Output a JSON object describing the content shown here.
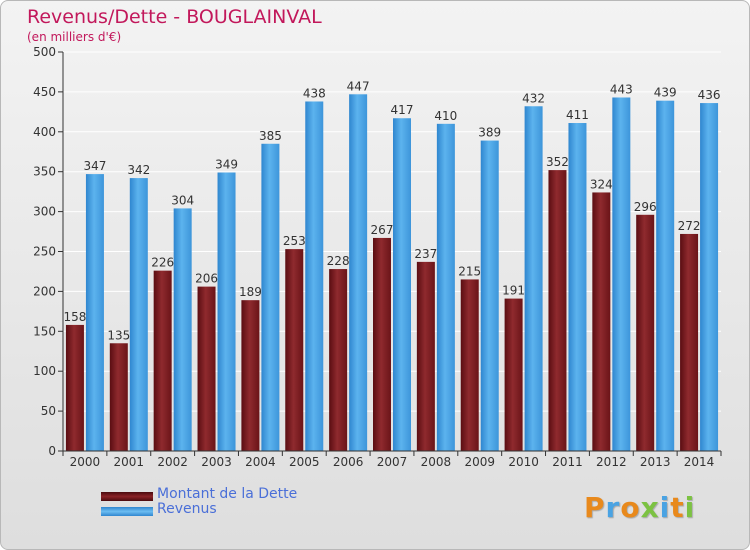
{
  "title": "Revenus/Dette - BOUGLAINVAL",
  "subtitle": "(en milliers d'€)",
  "logo_text": "Proxiti",
  "chart_data": {
    "type": "bar",
    "title": "Revenus/Dette - BOUGLAINVAL",
    "subtitle": "(en milliers d'€)",
    "categories": [
      "2000",
      "2001",
      "2002",
      "2003",
      "2004",
      "2005",
      "2006",
      "2007",
      "2008",
      "2009",
      "2010",
      "2011",
      "2012",
      "2013",
      "2014"
    ],
    "series": [
      {
        "name": "Montant de la Dette",
        "color": "#7a1a1e",
        "values": [
          158,
          135,
          226,
          206,
          189,
          253,
          228,
          267,
          237,
          215,
          191,
          352,
          324,
          296,
          272
        ]
      },
      {
        "name": "Revenus",
        "color": "#4aa3e3",
        "values": [
          347,
          342,
          304,
          349,
          385,
          438,
          447,
          417,
          410,
          389,
          432,
          411,
          443,
          439,
          436
        ]
      }
    ],
    "ylim": [
      0,
      500
    ],
    "yticks": [
      0,
      50,
      100,
      150,
      200,
      250,
      300,
      350,
      400,
      450,
      500
    ],
    "grid": true,
    "legend_position": "bottom-left"
  },
  "legend": [
    {
      "label": "Montant de la Dette",
      "color": "#7a1a1e"
    },
    {
      "label": "Revenus",
      "color": "#4aa3e3"
    }
  ]
}
